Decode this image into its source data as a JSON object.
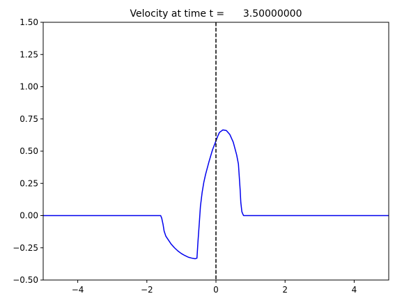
{
  "chart_data": {
    "type": "line",
    "title": "Velocity at time t =      3.50000000",
    "xlabel": "",
    "ylabel": "",
    "xlim": [
      -5,
      5
    ],
    "ylim": [
      -0.5,
      1.5
    ],
    "xticks": [
      -4,
      -2,
      0,
      2,
      4
    ],
    "yticks": [
      -0.5,
      -0.25,
      0.0,
      0.25,
      0.5,
      0.75,
      1.0,
      1.25,
      1.5
    ],
    "ytick_labels": [
      "−0.50",
      "−0.25",
      "0.00",
      "0.25",
      "0.50",
      "0.75",
      "1.00",
      "1.25",
      "1.50"
    ],
    "xtick_labels": [
      "−4",
      "−2",
      "0",
      "2",
      "4"
    ],
    "grid": false,
    "colors": {
      "series": "#0000ee",
      "reference_line": "#000000"
    },
    "reference_line": {
      "orientation": "vertical",
      "x": 0,
      "style": "dashed"
    },
    "series": [
      {
        "color": "#0000ee",
        "x": [
          -5.0,
          -1.6,
          -1.57,
          -1.53,
          -1.5,
          -1.45,
          -1.4,
          -1.3,
          -1.2,
          -1.1,
          -1.0,
          -0.9,
          -0.8,
          -0.7,
          -0.6,
          -0.55,
          -0.52,
          -0.48,
          -0.45,
          -0.4,
          -0.35,
          -0.3,
          -0.2,
          -0.1,
          0.0,
          0.05,
          0.1,
          0.2,
          0.3,
          0.4,
          0.5,
          0.6,
          0.65,
          0.7,
          0.72,
          0.75,
          0.78,
          0.8,
          5.0
        ],
        "y": [
          0.0,
          0.0,
          -0.02,
          -0.07,
          -0.12,
          -0.16,
          -0.18,
          -0.22,
          -0.25,
          -0.275,
          -0.295,
          -0.31,
          -0.323,
          -0.33,
          -0.335,
          -0.33,
          -0.2,
          -0.05,
          0.07,
          0.18,
          0.26,
          0.32,
          0.42,
          0.51,
          0.58,
          0.615,
          0.645,
          0.665,
          0.66,
          0.63,
          0.57,
          0.47,
          0.4,
          0.2,
          0.1,
          0.03,
          0.01,
          0.0,
          0.0
        ]
      }
    ]
  }
}
